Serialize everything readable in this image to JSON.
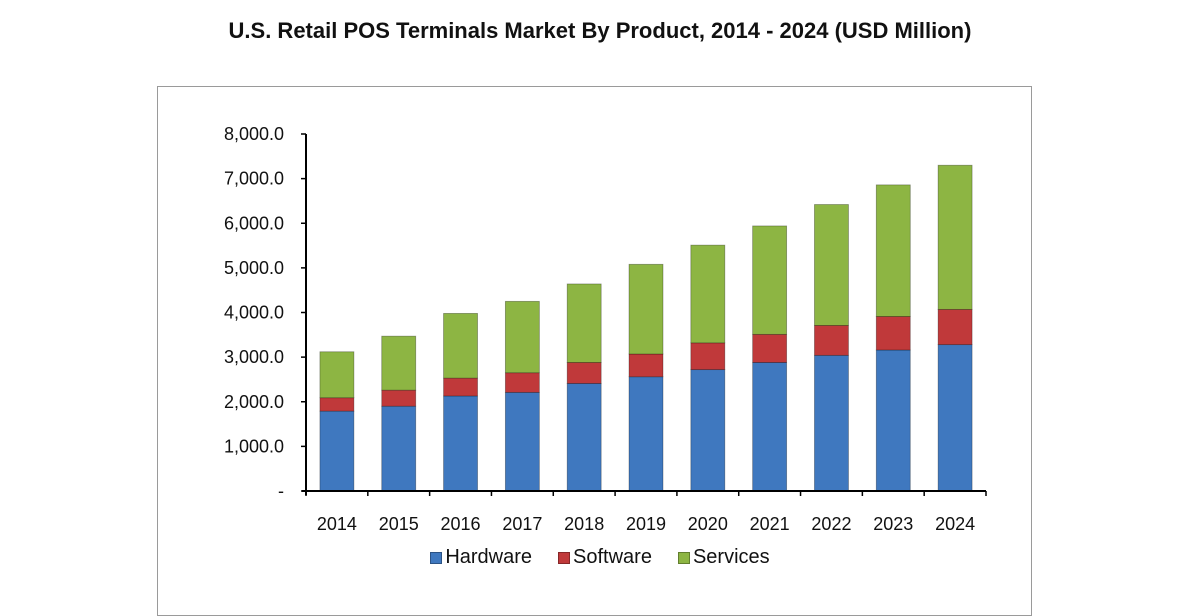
{
  "chart_data": {
    "type": "bar",
    "stacked": true,
    "title": "U.S. Retail POS Terminals Market By Product, 2014 - 2024 (USD Million)",
    "xlabel": "",
    "ylabel": "",
    "categories": [
      "2014",
      "2015",
      "2016",
      "2017",
      "2018",
      "2019",
      "2020",
      "2021",
      "2022",
      "2023",
      "2024"
    ],
    "ylim": [
      0,
      8000
    ],
    "yticks": [
      0,
      1000,
      2000,
      3000,
      4000,
      5000,
      6000,
      7000,
      8000
    ],
    "ytick_labels": [
      "-",
      "1,000.0",
      "2,000.0",
      "3,000.0",
      "4,000.0",
      "5,000.0",
      "6,000.0",
      "7,000.0",
      "8,000.0"
    ],
    "grid": false,
    "legend_position": "bottom",
    "series": [
      {
        "name": "Hardware",
        "color": "#3f78bf",
        "values": [
          1790,
          1900,
          2130,
          2210,
          2410,
          2560,
          2720,
          2880,
          3040,
          3160,
          3280
        ]
      },
      {
        "name": "Software",
        "color": "#c0393a",
        "values": [
          300,
          360,
          400,
          440,
          470,
          510,
          600,
          630,
          670,
          750,
          790
        ]
      },
      {
        "name": "Services",
        "color": "#8db543",
        "values": [
          1030,
          1210,
          1450,
          1600,
          1760,
          2010,
          2190,
          2430,
          2710,
          2950,
          3230
        ]
      }
    ]
  }
}
